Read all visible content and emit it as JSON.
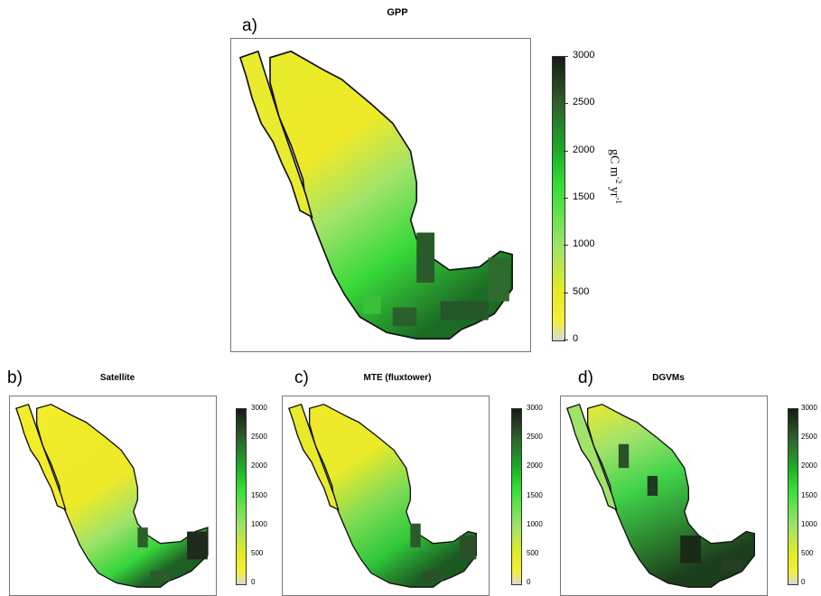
{
  "colors": {
    "scale_min": "#d8d8d8",
    "scale_low": "#f4ef3a",
    "scale_mid": "#33de33",
    "scale_high": "#141c12"
  },
  "panels": [
    {
      "label": "a)",
      "title": "GPP"
    },
    {
      "label": "b)",
      "title": "Satellite"
    },
    {
      "label": "c)",
      "title": "MTE (fluxtower)"
    },
    {
      "label": "d)",
      "title": "DGVMs"
    }
  ],
  "colorbar_ticks": [
    "3000",
    "2500",
    "2000",
    "1500",
    "1000",
    "500",
    "0"
  ],
  "unit_label": {
    "base": "gC m",
    "exp1": "-2",
    "mid": " yr",
    "exp2": "-1"
  }
}
